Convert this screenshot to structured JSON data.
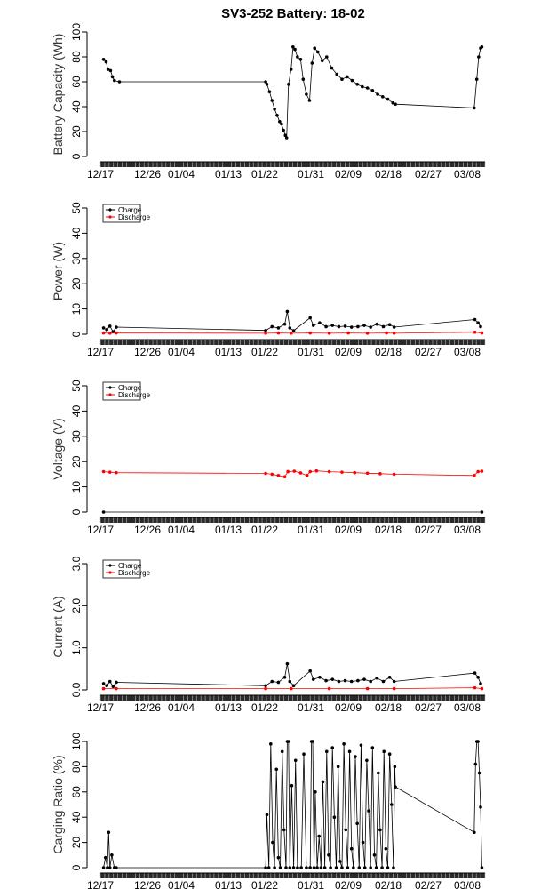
{
  "title": "SV3-252 Battery: 18-02",
  "colors": {
    "charge": "#000000",
    "discharge": "#ff0000"
  },
  "x_ticks": [
    "12/17",
    "12/26",
    "01/04",
    "01/13",
    "01/22",
    "01/31",
    "02/09",
    "02/18",
    "02/27",
    "03/08"
  ],
  "chart_data": [
    {
      "type": "line",
      "id": "capacity",
      "ylabel": "Battery Capacity (Wh)",
      "ylim": [
        0,
        100
      ],
      "yticks": [
        0,
        20,
        40,
        60,
        80,
        100
      ],
      "legend": null,
      "series": [
        {
          "values": [
            [
              0.5,
              78
            ],
            [
              0.9,
              76
            ],
            [
              1.2,
              70
            ],
            [
              1.6,
              69
            ],
            [
              1.9,
              64
            ],
            [
              2.2,
              61
            ],
            [
              3,
              60
            ],
            [
              26,
              60
            ],
            [
              26.2,
              58
            ],
            [
              26.6,
              52
            ],
            [
              27,
              45
            ],
            [
              27.4,
              38
            ],
            [
              27.8,
              33
            ],
            [
              28.2,
              28
            ],
            [
              28.5,
              26
            ],
            [
              28.8,
              21
            ],
            [
              29.1,
              17
            ],
            [
              29.3,
              15
            ],
            [
              29.6,
              58
            ],
            [
              30,
              70
            ],
            [
              30.3,
              88
            ],
            [
              30.6,
              86
            ],
            [
              31,
              80
            ],
            [
              31.5,
              78
            ],
            [
              31.9,
              62
            ],
            [
              32.4,
              50
            ],
            [
              32.9,
              45
            ],
            [
              33.3,
              75
            ],
            [
              33.7,
              87
            ],
            [
              34.2,
              84
            ],
            [
              34.9,
              77
            ],
            [
              35.6,
              80
            ],
            [
              36.4,
              71
            ],
            [
              37.2,
              66
            ],
            [
              38,
              62
            ],
            [
              38.8,
              64
            ],
            [
              39.6,
              61
            ],
            [
              40.4,
              58
            ],
            [
              41.2,
              56
            ],
            [
              42,
              55
            ],
            [
              42.8,
              53
            ],
            [
              43.6,
              50
            ],
            [
              44.4,
              48
            ],
            [
              45.2,
              46
            ],
            [
              46,
              43
            ],
            [
              46.4,
              42
            ],
            [
              58.8,
              39
            ],
            [
              59.2,
              62
            ],
            [
              59.5,
              80
            ],
            [
              59.8,
              87
            ],
            [
              60,
              88
            ]
          ]
        }
      ]
    },
    {
      "type": "line",
      "id": "power",
      "ylabel": "Power (W)",
      "ylim": [
        0,
        50
      ],
      "yticks": [
        0,
        10,
        20,
        30,
        40,
        50
      ],
      "legend": [
        "Charge",
        "Discharge"
      ],
      "series": [
        {
          "name": "Charge",
          "color": "#000000",
          "values": [
            [
              0.5,
              2.5
            ],
            [
              1,
              1.8
            ],
            [
              1.5,
              3.2
            ],
            [
              2,
              1
            ],
            [
              2.5,
              2.8
            ],
            [
              26,
              1.5
            ],
            [
              27,
              3
            ],
            [
              28,
              2.5
            ],
            [
              29,
              4
            ],
            [
              29.4,
              9
            ],
            [
              29.8,
              2.5
            ],
            [
              30.4,
              1.4
            ],
            [
              33,
              6.5
            ],
            [
              33.5,
              3.5
            ],
            [
              34.5,
              4.5
            ],
            [
              35.5,
              3
            ],
            [
              36.5,
              3.5
            ],
            [
              37.5,
              3
            ],
            [
              38.5,
              3.2
            ],
            [
              39.5,
              2.8
            ],
            [
              40.5,
              3
            ],
            [
              41.5,
              3.5
            ],
            [
              42.5,
              2.8
            ],
            [
              43.5,
              4
            ],
            [
              44.5,
              3
            ],
            [
              45.5,
              3.8
            ],
            [
              46.2,
              2.8
            ],
            [
              58.9,
              5.8
            ],
            [
              59.4,
              4.5
            ],
            [
              59.8,
              3
            ]
          ]
        },
        {
          "name": "Discharge",
          "color": "#ff0000",
          "values": [
            [
              0.5,
              0.5
            ],
            [
              1.5,
              0.4
            ],
            [
              2.5,
              0.5
            ],
            [
              26,
              0.4
            ],
            [
              28,
              0.5
            ],
            [
              30,
              0.4
            ],
            [
              33,
              0.5
            ],
            [
              36,
              0.4
            ],
            [
              39,
              0.5
            ],
            [
              42,
              0.4
            ],
            [
              45,
              0.5
            ],
            [
              46.2,
              0.4
            ],
            [
              58.9,
              0.8
            ],
            [
              60,
              0.5
            ]
          ]
        }
      ]
    },
    {
      "type": "line",
      "id": "voltage",
      "ylabel": "Voltage (V)",
      "ylim": [
        0,
        50
      ],
      "yticks": [
        0,
        10,
        20,
        30,
        40,
        50
      ],
      "legend": [
        "Charge",
        "Discharge"
      ],
      "series": [
        {
          "name": "Charge",
          "color": "#000000",
          "values": [
            [
              0.5,
              0
            ],
            [
              60,
              0
            ]
          ]
        },
        {
          "name": "Discharge",
          "color": "#ff0000",
          "values": [
            [
              0.5,
              16
            ],
            [
              1.5,
              15.8
            ],
            [
              2.5,
              15.6
            ],
            [
              26,
              15.3
            ],
            [
              27,
              15
            ],
            [
              28,
              14.5
            ],
            [
              29,
              14
            ],
            [
              29.5,
              16
            ],
            [
              30.5,
              16.2
            ],
            [
              31.5,
              15.5
            ],
            [
              32.5,
              14.5
            ],
            [
              33,
              16
            ],
            [
              34,
              16.3
            ],
            [
              36,
              16
            ],
            [
              38,
              15.8
            ],
            [
              40,
              15.6
            ],
            [
              42,
              15.4
            ],
            [
              44,
              15.2
            ],
            [
              46.2,
              15
            ],
            [
              58.8,
              14.5
            ],
            [
              59.4,
              16
            ],
            [
              60,
              16.2
            ]
          ]
        }
      ]
    },
    {
      "type": "line",
      "id": "current",
      "ylabel": "Current (A)",
      "ylim": [
        0,
        3
      ],
      "yticks": [
        0.0,
        1.0,
        2.0,
        3.0
      ],
      "legend": [
        "Charge",
        "Discharge"
      ],
      "series": [
        {
          "name": "Charge",
          "color": "#000000",
          "values": [
            [
              0.5,
              0.15
            ],
            [
              1,
              0.1
            ],
            [
              1.5,
              0.2
            ],
            [
              2,
              0.08
            ],
            [
              2.5,
              0.18
            ],
            [
              26,
              0.1
            ],
            [
              27,
              0.2
            ],
            [
              28,
              0.18
            ],
            [
              29,
              0.3
            ],
            [
              29.4,
              0.62
            ],
            [
              29.8,
              0.2
            ],
            [
              30.4,
              0.1
            ],
            [
              33,
              0.45
            ],
            [
              33.5,
              0.25
            ],
            [
              34.5,
              0.3
            ],
            [
              35.5,
              0.22
            ],
            [
              36.5,
              0.25
            ],
            [
              37.5,
              0.2
            ],
            [
              38.5,
              0.22
            ],
            [
              39.5,
              0.2
            ],
            [
              40.5,
              0.22
            ],
            [
              41.5,
              0.25
            ],
            [
              42.5,
              0.2
            ],
            [
              43.5,
              0.28
            ],
            [
              44.5,
              0.2
            ],
            [
              45.5,
              0.3
            ],
            [
              46.2,
              0.2
            ],
            [
              58.9,
              0.4
            ],
            [
              59.4,
              0.3
            ],
            [
              59.8,
              0.15
            ]
          ]
        },
        {
          "name": "Discharge",
          "color": "#ff0000",
          "values": [
            [
              0.5,
              0.03
            ],
            [
              2.5,
              0.03
            ],
            [
              26,
              0.03
            ],
            [
              30,
              0.03
            ],
            [
              36,
              0.03
            ],
            [
              42,
              0.03
            ],
            [
              46.2,
              0.03
            ],
            [
              58.9,
              0.05
            ],
            [
              60,
              0.03
            ]
          ]
        }
      ]
    },
    {
      "type": "line",
      "id": "ratio",
      "ylabel": "Carging Ratio (%)",
      "ylim": [
        0,
        100
      ],
      "yticks": [
        0,
        20,
        40,
        60,
        80,
        100
      ],
      "legend": null,
      "series": [
        {
          "values": [
            [
              0.5,
              0
            ],
            [
              0.8,
              8
            ],
            [
              1.1,
              0
            ],
            [
              1.3,
              28
            ],
            [
              1.5,
              0
            ],
            [
              1.8,
              10
            ],
            [
              2.2,
              0
            ],
            [
              2.5,
              0
            ],
            [
              26,
              0
            ],
            [
              26.2,
              42
            ],
            [
              26.5,
              0
            ],
            [
              26.8,
              98
            ],
            [
              27.1,
              20
            ],
            [
              27.4,
              0
            ],
            [
              27.7,
              78
            ],
            [
              28,
              8
            ],
            [
              28.3,
              0
            ],
            [
              28.6,
              92
            ],
            [
              28.9,
              30
            ],
            [
              29.2,
              0
            ],
            [
              29.4,
              100
            ],
            [
              29.6,
              100
            ],
            [
              29.8,
              0
            ],
            [
              30.1,
              65
            ],
            [
              30.4,
              0
            ],
            [
              30.7,
              85
            ],
            [
              31,
              0
            ],
            [
              31.6,
              0
            ],
            [
              32,
              90
            ],
            [
              32.4,
              0
            ],
            [
              33,
              0
            ],
            [
              33.2,
              100
            ],
            [
              33.4,
              100
            ],
            [
              33.6,
              0
            ],
            [
              33.8,
              60
            ],
            [
              34.1,
              0
            ],
            [
              34.4,
              25
            ],
            [
              34.7,
              0
            ],
            [
              35,
              68
            ],
            [
              35.3,
              0
            ],
            [
              35.6,
              92
            ],
            [
              35.9,
              10
            ],
            [
              36.2,
              0
            ],
            [
              36.5,
              95
            ],
            [
              36.8,
              40
            ],
            [
              37.1,
              0
            ],
            [
              37.4,
              80
            ],
            [
              37.7,
              5
            ],
            [
              38,
              0
            ],
            [
              38.3,
              98
            ],
            [
              38.6,
              30
            ],
            [
              38.9,
              0
            ],
            [
              39.2,
              92
            ],
            [
              39.5,
              15
            ],
            [
              39.8,
              0
            ],
            [
              40.1,
              88
            ],
            [
              40.4,
              35
            ],
            [
              40.7,
              0
            ],
            [
              41,
              97
            ],
            [
              41.3,
              20
            ],
            [
              41.6,
              0
            ],
            [
              41.9,
              85
            ],
            [
              42.2,
              45
            ],
            [
              42.5,
              0
            ],
            [
              42.8,
              95
            ],
            [
              43.1,
              10
            ],
            [
              43.4,
              0
            ],
            [
              43.7,
              75
            ],
            [
              44,
              30
            ],
            [
              44.3,
              0
            ],
            [
              44.6,
              92
            ],
            [
              44.9,
              15
            ],
            [
              45.2,
              0
            ],
            [
              45.5,
              90
            ],
            [
              45.8,
              50
            ],
            [
              46.1,
              0
            ],
            [
              46.3,
              80
            ],
            [
              46.4,
              64
            ],
            [
              58.8,
              28
            ],
            [
              59,
              82
            ],
            [
              59.2,
              100
            ],
            [
              59.4,
              100
            ],
            [
              59.6,
              75
            ],
            [
              59.8,
              48
            ],
            [
              60,
              0
            ]
          ]
        }
      ]
    }
  ]
}
